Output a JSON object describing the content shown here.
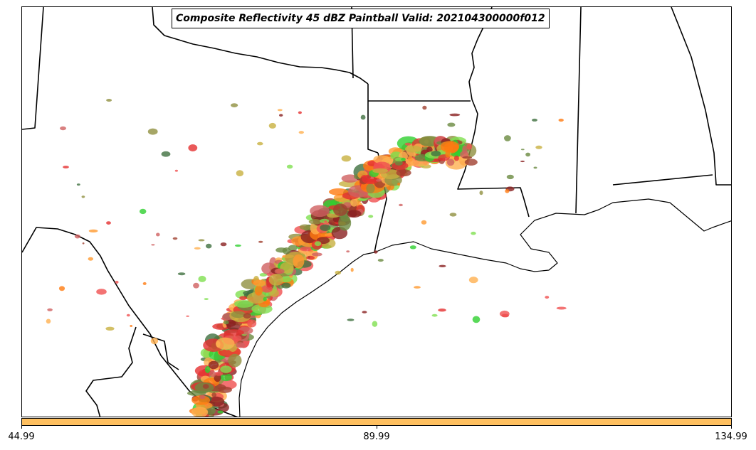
{
  "title": "Composite Reflectivity 45 dBZ Paintball Valid: 202104300000f012",
  "colorbar": {
    "color": "#ffc060",
    "ticks": [
      "44.99",
      "89.99",
      "134.99"
    ]
  },
  "palette": [
    "#e53030",
    "#f05050",
    "#ff9a30",
    "#ffb050",
    "#ff7a10",
    "#c8b040",
    "#909040",
    "#6a8a40",
    "#407040",
    "#30d030",
    "#80e050",
    "#8a2020",
    "#a04030",
    "#d06060"
  ]
}
